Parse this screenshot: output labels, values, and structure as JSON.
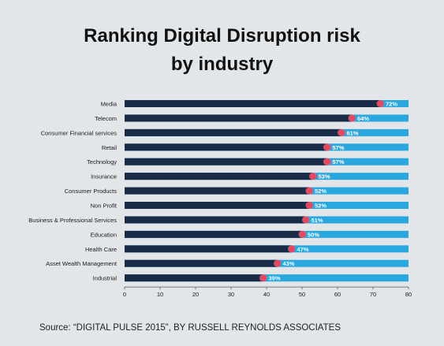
{
  "title_line1": "Ranking Digital Disruption risk",
  "title_line2": "by industry",
  "source": "Source: “DIGITAL PULSE 2015”, BY RUSSELL REYNOLDS ASSOCIATES",
  "colors": {
    "bar_value": "#1a2b47",
    "bar_remainder": "#29a8e0",
    "marker": "#e8475e",
    "label": "#ffffff"
  },
  "chart_data": {
    "type": "bar",
    "orientation": "horizontal",
    "categories": [
      "Media",
      "Telecom",
      "Consumer Financial services",
      "Retail",
      "Technology",
      "Insurance",
      "Consumer Products",
      "Non Profit",
      "Business & Professional Services",
      "Education",
      "Health Care",
      "Asset Wealth Management",
      "Industrial"
    ],
    "values": [
      72,
      64,
      61,
      57,
      57,
      53,
      52,
      52,
      51,
      50,
      47,
      43,
      39
    ],
    "value_labels": [
      "72%",
      "64%",
      "61%",
      "57%",
      "57%",
      "53%",
      "52%",
      "52%",
      "51%",
      "50%",
      "47%",
      "43%",
      "39%"
    ],
    "xlim": [
      0,
      80
    ],
    "xticks": [
      0,
      10,
      20,
      30,
      40,
      50,
      60,
      70,
      80
    ],
    "xticklabels": [
      "0",
      "10",
      "20",
      "30",
      "40",
      "50",
      "60",
      "70",
      "80"
    ],
    "grid": false,
    "legend": "none"
  }
}
